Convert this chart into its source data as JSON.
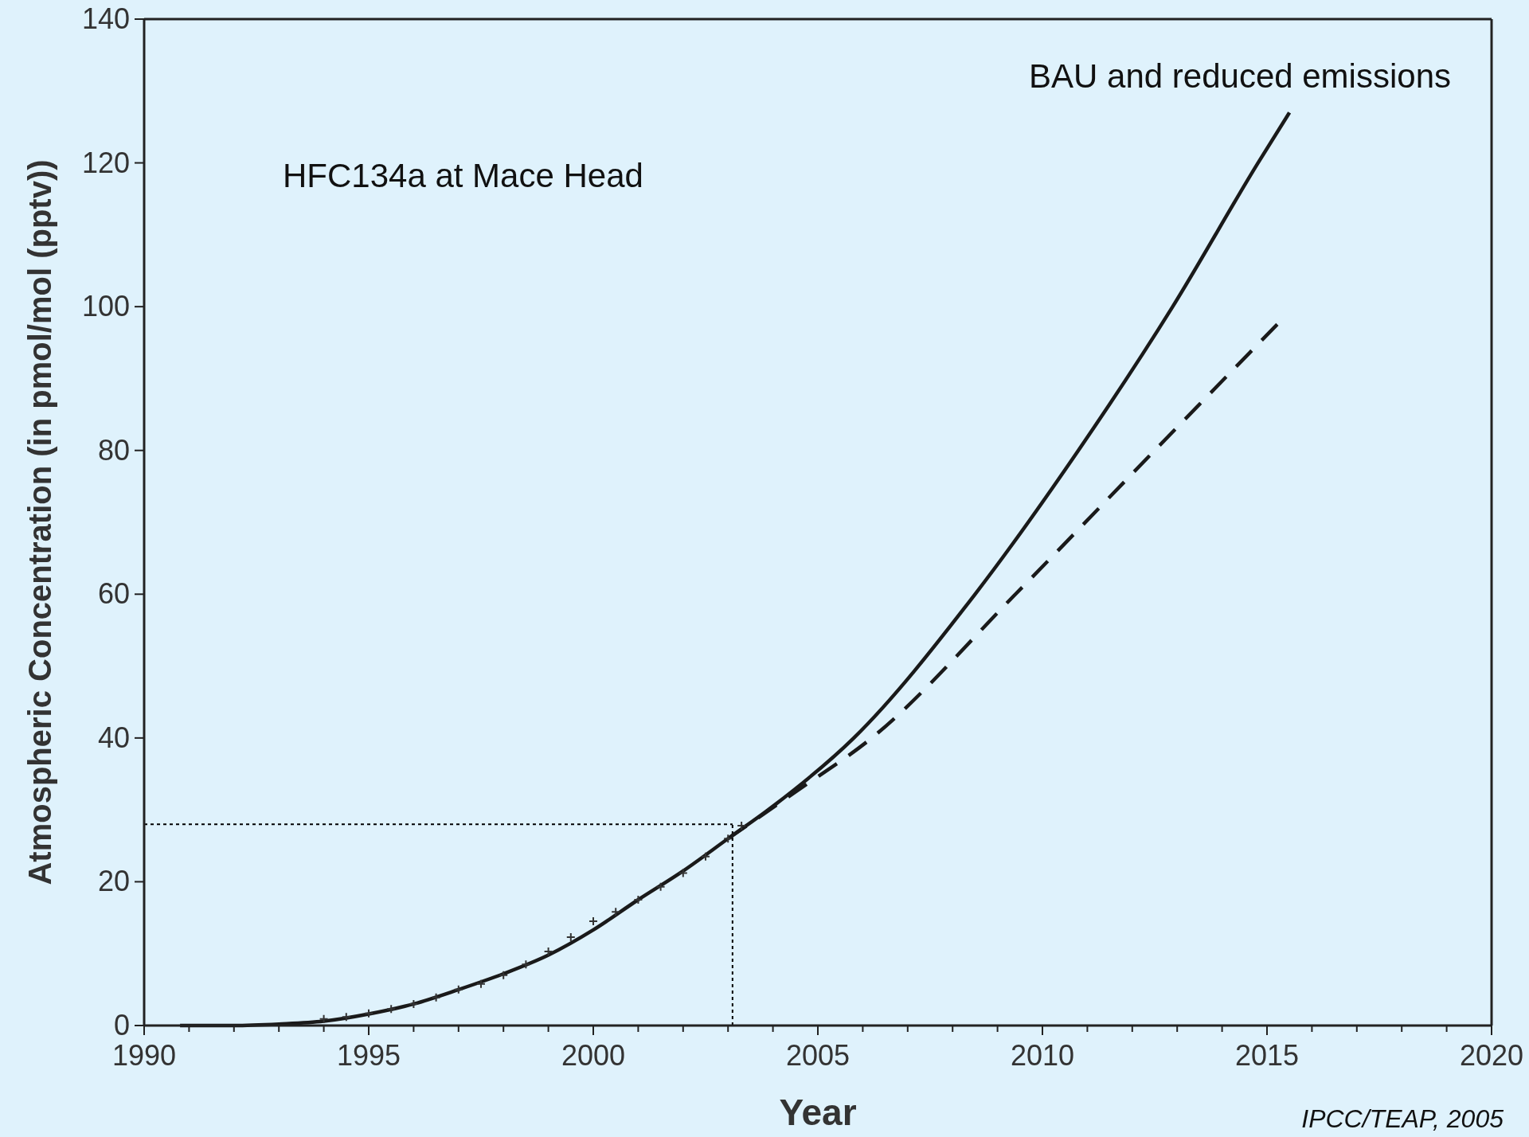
{
  "chart_data": {
    "type": "line",
    "xlabel": "Year",
    "ylabel": "Atmospheric Concentration (in pmol/mol (pptv))",
    "annotations": [
      "HFC134a at Mace Head",
      "BAU and reduced emissions",
      "IPCC/TEAP, 2005"
    ],
    "xlim": [
      1990,
      2020
    ],
    "ylim": [
      0,
      140
    ],
    "xticks": [
      1990,
      {
        "value": 1991,
        "label": null
      },
      {
        "value": 1992,
        "label": null
      },
      {
        "value": 1993,
        "label": null
      },
      {
        "value": 1994,
        "label": null
      },
      1995,
      {
        "value": 1996,
        "label": null
      },
      {
        "value": 1997,
        "label": null
      },
      {
        "value": 1998,
        "label": null
      },
      {
        "value": 1999,
        "label": null
      },
      2000,
      {
        "value": 2001,
        "label": null
      },
      {
        "value": 2002,
        "label": null
      },
      {
        "value": 2003,
        "label": null
      },
      {
        "value": 2004,
        "label": null
      },
      2005,
      {
        "value": 2006,
        "label": null
      },
      {
        "value": 2007,
        "label": null
      },
      {
        "value": 2008,
        "label": null
      },
      {
        "value": 2009,
        "label": null
      },
      2010,
      {
        "value": 2011,
        "label": null
      },
      {
        "value": 2012,
        "label": null
      },
      {
        "value": 2013,
        "label": null
      },
      {
        "value": 2014,
        "label": null
      },
      2015,
      {
        "value": 2016,
        "label": null
      },
      {
        "value": 2017,
        "label": null
      },
      {
        "value": 2018,
        "label": null
      },
      {
        "value": 2019,
        "label": null
      },
      2020
    ],
    "yticks": [
      0,
      20,
      40,
      60,
      80,
      100,
      120,
      140
    ],
    "grid": false,
    "ref_lines": [
      {
        "axis": "y",
        "value": 28,
        "line_style": "dotted",
        "color": "#000000"
      },
      {
        "axis": "x",
        "value": 2003.1,
        "line_style": "dotted",
        "color": "#000000"
      }
    ],
    "series": [
      {
        "color": "#1a1a1a",
        "line_style": "solid",
        "x": [
          1990.8,
          1992,
          1993,
          1994,
          1995,
          1996,
          1997,
          1998,
          1999,
          2000,
          2001,
          2002,
          2003,
          2004,
          2005.8,
          2008.5,
          2010.8,
          2012.9,
          2014.8,
          2015.5
        ],
        "values": [
          0,
          0,
          0.2,
          0.6,
          1.6,
          3,
          5,
          7.2,
          9.8,
          13.3,
          17.5,
          21.5,
          26,
          30.5,
          40,
          60,
          80,
          100,
          120,
          127
        ]
      },
      {
        "color": "#1a1a1a",
        "line_style": "dashed",
        "x": [
          2003,
          2004.5,
          2006.2,
          2009.4,
          2012.5,
          2015.3
        ],
        "values": [
          26,
          32.5,
          40,
          60,
          80,
          98
        ]
      },
      {
        "type": "scatter",
        "marker": "cross",
        "color": "#333333",
        "x": [
          1994,
          1994.5,
          1995,
          1995.5,
          1996,
          1996.5,
          1997,
          1997.5,
          1998,
          1998.5,
          1999,
          1999.5,
          2000,
          2000.5,
          2001,
          2001.5,
          2002,
          2002.5,
          2003,
          2003.3
        ],
        "values": [
          0.9,
          1.2,
          1.7,
          2.3,
          3,
          3.9,
          5,
          5.8,
          7,
          8.5,
          10.3,
          12.3,
          14.5,
          15.8,
          17.5,
          19.3,
          21.2,
          23.5,
          26,
          27.8
        ]
      }
    ]
  }
}
